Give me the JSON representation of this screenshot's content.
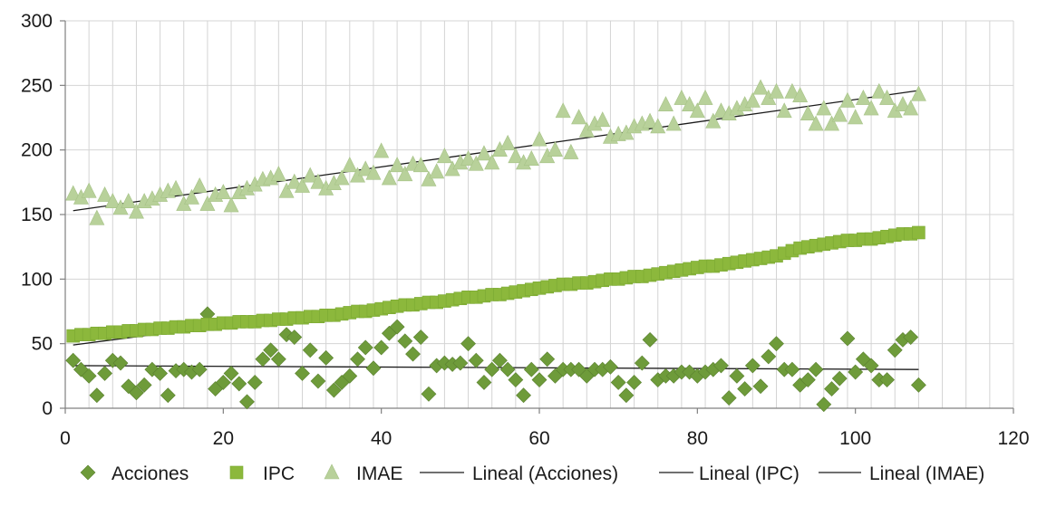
{
  "chart_data": {
    "type": "scatter",
    "title": "",
    "xlabel": "",
    "ylabel": "",
    "xlim": [
      0,
      120
    ],
    "ylim": [
      0,
      300
    ],
    "xticks": [
      0,
      20,
      40,
      60,
      80,
      100,
      120
    ],
    "yticks": [
      0,
      50,
      100,
      150,
      200,
      250,
      300
    ],
    "x_minor_step": 3,
    "grid": "on",
    "legend_position": "bottom",
    "colors": {
      "acciones": "#6e9b3a",
      "ipc": "#8cb83c",
      "imae": "#b8d19a",
      "trend": "#1a1a1a",
      "grid": "#d4d4d4",
      "axis": "#808080"
    },
    "series": [
      {
        "name": "Acciones",
        "marker": "diamond",
        "x": [
          1,
          2,
          3,
          4,
          5,
          6,
          7,
          8,
          9,
          10,
          11,
          12,
          13,
          14,
          15,
          16,
          17,
          18,
          19,
          20,
          21,
          22,
          23,
          24,
          25,
          26,
          27,
          28,
          29,
          30,
          31,
          32,
          33,
          34,
          35,
          36,
          37,
          38,
          39,
          40,
          41,
          42,
          43,
          44,
          45,
          46,
          47,
          48,
          49,
          50,
          51,
          52,
          53,
          54,
          55,
          56,
          57,
          58,
          59,
          60,
          61,
          62,
          63,
          64,
          65,
          66,
          67,
          68,
          69,
          70,
          71,
          72,
          73,
          74,
          75,
          76,
          77,
          78,
          79,
          80,
          81,
          82,
          83,
          84,
          85,
          86,
          87,
          88,
          89,
          90,
          91,
          92,
          93,
          94,
          95,
          96,
          97,
          98,
          99,
          100,
          101,
          102,
          103,
          104,
          105,
          106,
          107,
          108
        ],
        "y": [
          37,
          30,
          25,
          10,
          27,
          37,
          35,
          17,
          12,
          18,
          30,
          27,
          10,
          29,
          30,
          28,
          30,
          73,
          15,
          20,
          27,
          19,
          5,
          20,
          38,
          45,
          38,
          57,
          55,
          27,
          45,
          21,
          39,
          14,
          20,
          25,
          38,
          47,
          31,
          47,
          58,
          63,
          52,
          42,
          55,
          11,
          33,
          35,
          34,
          35,
          50,
          37,
          20,
          30,
          37,
          30,
          22,
          10,
          30,
          22,
          38,
          25,
          30,
          30,
          30,
          25,
          30,
          30,
          32,
          20,
          10,
          20,
          35,
          53,
          22,
          25,
          25,
          28,
          28,
          25,
          28,
          30,
          33,
          8,
          25,
          15,
          33,
          17,
          40,
          50,
          30,
          30,
          18,
          22,
          30,
          3,
          15,
          23,
          54,
          28,
          38,
          33,
          22,
          22,
          45,
          53,
          55,
          18
        ]
      },
      {
        "name": "IPC",
        "marker": "square",
        "x": [
          1,
          2,
          3,
          4,
          5,
          6,
          7,
          8,
          9,
          10,
          11,
          12,
          13,
          14,
          15,
          16,
          17,
          18,
          19,
          20,
          21,
          22,
          23,
          24,
          25,
          26,
          27,
          28,
          29,
          30,
          31,
          32,
          33,
          34,
          35,
          36,
          37,
          38,
          39,
          40,
          41,
          42,
          43,
          44,
          45,
          46,
          47,
          48,
          49,
          50,
          51,
          52,
          53,
          54,
          55,
          56,
          57,
          58,
          59,
          60,
          61,
          62,
          63,
          64,
          65,
          66,
          67,
          68,
          69,
          70,
          71,
          72,
          73,
          74,
          75,
          76,
          77,
          78,
          79,
          80,
          81,
          82,
          83,
          84,
          85,
          86,
          87,
          88,
          89,
          90,
          91,
          92,
          93,
          94,
          95,
          96,
          97,
          98,
          99,
          100,
          101,
          102,
          103,
          104,
          105,
          106,
          107,
          108
        ],
        "y": [
          56,
          57,
          57,
          58,
          58,
          59,
          59,
          60,
          60,
          61,
          61,
          62,
          62,
          63,
          63,
          64,
          64,
          65,
          65,
          66,
          66,
          67,
          67,
          67,
          68,
          68,
          69,
          69,
          70,
          70,
          71,
          71,
          72,
          72,
          73,
          74,
          75,
          75,
          76,
          77,
          78,
          79,
          80,
          80,
          81,
          82,
          82,
          83,
          84,
          85,
          86,
          86,
          87,
          88,
          88,
          89,
          90,
          91,
          92,
          93,
          94,
          95,
          96,
          96,
          97,
          97,
          98,
          99,
          100,
          100,
          101,
          102,
          102,
          103,
          104,
          105,
          106,
          107,
          108,
          109,
          110,
          110,
          111,
          112,
          113,
          114,
          115,
          116,
          117,
          118,
          120,
          122,
          124,
          125,
          126,
          127,
          128,
          129,
          130,
          130,
          131,
          131,
          132,
          133,
          134,
          135,
          135,
          136
        ]
      },
      {
        "name": "IMAE",
        "marker": "triangle",
        "x": [
          1,
          2,
          3,
          4,
          5,
          6,
          7,
          8,
          9,
          10,
          11,
          12,
          13,
          14,
          15,
          16,
          17,
          18,
          19,
          20,
          21,
          22,
          23,
          24,
          25,
          26,
          27,
          28,
          29,
          30,
          31,
          32,
          33,
          34,
          35,
          36,
          37,
          38,
          39,
          40,
          41,
          42,
          43,
          44,
          45,
          46,
          47,
          48,
          49,
          50,
          51,
          52,
          53,
          54,
          55,
          56,
          57,
          58,
          59,
          60,
          61,
          62,
          63,
          64,
          65,
          66,
          67,
          68,
          69,
          70,
          71,
          72,
          73,
          74,
          75,
          76,
          77,
          78,
          79,
          80,
          81,
          82,
          83,
          84,
          85,
          86,
          87,
          88,
          89,
          90,
          91,
          92,
          93,
          94,
          95,
          96,
          97,
          98,
          99,
          100,
          101,
          102,
          103,
          104,
          105,
          106,
          107,
          108
        ],
        "y": [
          166,
          163,
          168,
          147,
          165,
          160,
          155,
          160,
          152,
          160,
          162,
          165,
          168,
          170,
          158,
          163,
          172,
          158,
          165,
          167,
          157,
          167,
          170,
          173,
          177,
          178,
          181,
          168,
          175,
          172,
          180,
          175,
          170,
          174,
          178,
          188,
          180,
          185,
          182,
          199,
          178,
          188,
          181,
          189,
          188,
          177,
          183,
          195,
          185,
          190,
          193,
          189,
          197,
          190,
          200,
          205,
          195,
          190,
          193,
          208,
          195,
          200,
          230,
          198,
          225,
          215,
          220,
          223,
          210,
          212,
          213,
          218,
          220,
          222,
          218,
          235,
          220,
          240,
          235,
          230,
          240,
          222,
          230,
          228,
          232,
          235,
          238,
          248,
          240,
          245,
          230,
          245,
          242,
          228,
          220,
          232,
          220,
          227,
          238,
          225,
          240,
          232,
          245,
          240,
          230,
          235,
          232,
          243
        ]
      }
    ],
    "trendlines": [
      {
        "name": "Lineal (Acciones)",
        "x": [
          1,
          108
        ],
        "y": [
          33,
          30
        ]
      },
      {
        "name": "Lineal (IPC)",
        "x": [
          1,
          108
        ],
        "y": [
          49,
          134
        ]
      },
      {
        "name": "Lineal (IMAE)",
        "x": [
          1,
          108
        ],
        "y": [
          153,
          246
        ]
      }
    ],
    "legend": [
      "Acciones",
      "IPC",
      "IMAE",
      "Lineal (Acciones)",
      "Lineal (IPC)",
      "Lineal (IMAE)"
    ]
  }
}
